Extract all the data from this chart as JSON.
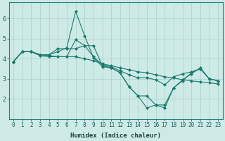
{
  "xlabel": "Humidex (Indice chaleur)",
  "ylabel": "",
  "background_color": "#ceeae6",
  "grid_color": "#aed4d0",
  "line_color": "#1a7a6e",
  "xlim": [
    -0.5,
    23.5
  ],
  "ylim": [
    1.0,
    6.8
  ],
  "yticks": [
    2,
    3,
    4,
    5,
    6
  ],
  "xticks": [
    0,
    1,
    2,
    3,
    4,
    5,
    6,
    7,
    8,
    9,
    10,
    11,
    12,
    13,
    14,
    15,
    16,
    17,
    18,
    19,
    20,
    21,
    22,
    23
  ],
  "series": [
    [
      3.85,
      4.35,
      4.35,
      4.2,
      4.2,
      4.35,
      4.55,
      6.35,
      5.15,
      4.05,
      3.6,
      3.55,
      3.3,
      2.6,
      2.15,
      2.15,
      1.7,
      1.7,
      2.55,
      2.95,
      3.25,
      3.55,
      3.0,
      2.9
    ],
    [
      3.85,
      4.35,
      4.35,
      4.15,
      4.1,
      4.1,
      4.1,
      4.1,
      4.0,
      3.9,
      3.75,
      3.65,
      3.55,
      3.45,
      3.35,
      3.3,
      3.2,
      3.1,
      3.05,
      2.95,
      2.9,
      2.85,
      2.8,
      2.75
    ],
    [
      3.85,
      4.35,
      4.35,
      4.2,
      4.15,
      4.1,
      4.1,
      4.95,
      4.65,
      4.1,
      3.7,
      3.6,
      3.4,
      3.2,
      3.05,
      3.05,
      2.95,
      2.7,
      3.1,
      3.25,
      3.35,
      3.5,
      3.0,
      2.9
    ],
    [
      3.85,
      4.35,
      4.35,
      4.2,
      4.2,
      4.5,
      4.5,
      4.5,
      4.65,
      4.65,
      3.65,
      3.55,
      3.3,
      2.6,
      2.15,
      1.55,
      1.7,
      1.55,
      2.55,
      2.9,
      3.3,
      3.5,
      3.0,
      2.9
    ]
  ],
  "tick_fontsize": 5.5,
  "xlabel_fontsize": 6.5,
  "marker_size": 2.0,
  "linewidth": 0.8
}
